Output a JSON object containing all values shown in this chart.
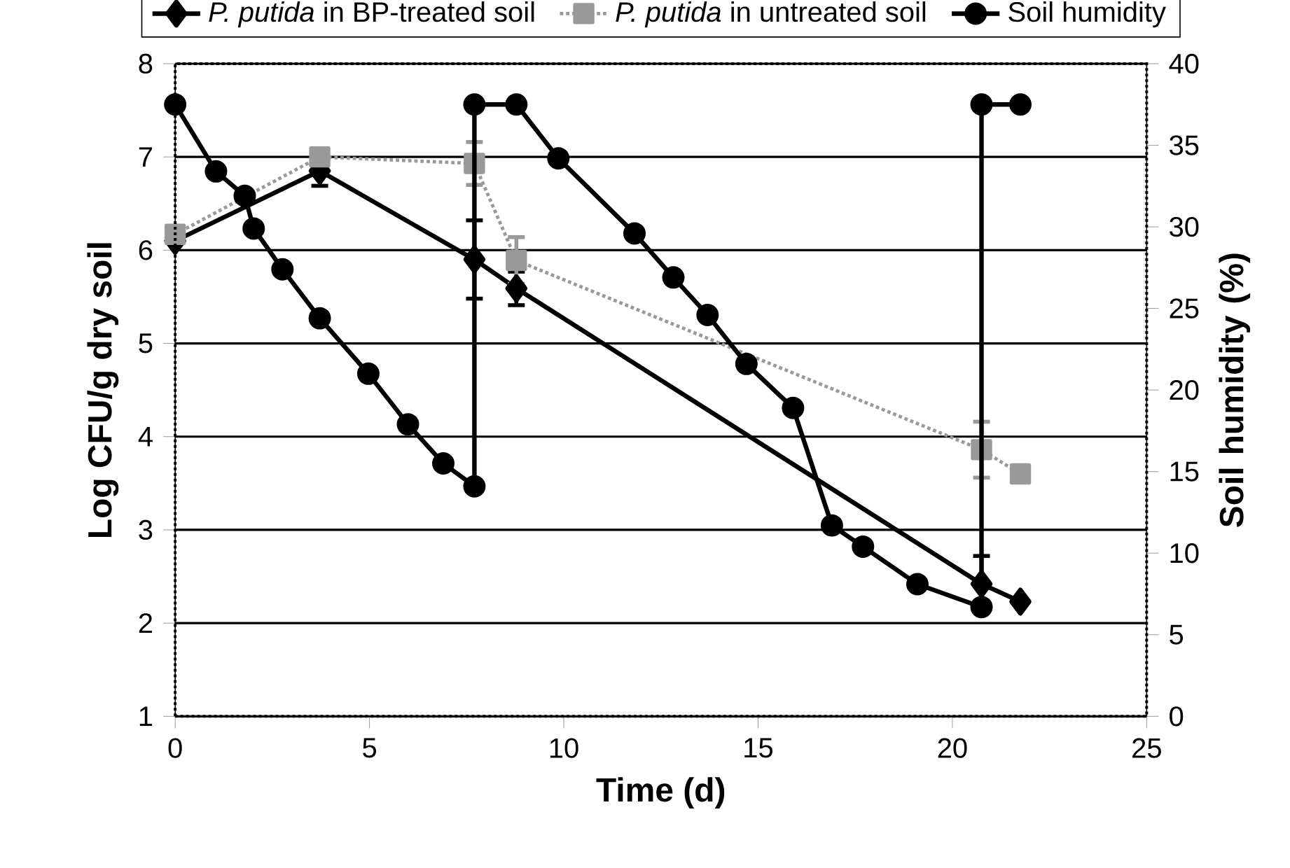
{
  "chart_data": {
    "type": "line",
    "xlabel": "Time (d)",
    "ylabel": "Log CFU/g dry soil",
    "y2label": "Soil humidity (%)",
    "xlim": [
      0,
      25
    ],
    "xticks": [
      0,
      5,
      10,
      15,
      20,
      25
    ],
    "ylim": [
      1,
      8
    ],
    "yticks": [
      1,
      2,
      3,
      4,
      5,
      6,
      7,
      8
    ],
    "y2lim": [
      0,
      40
    ],
    "y2ticks": [
      0,
      5,
      10,
      15,
      20,
      25,
      30,
      35,
      40
    ],
    "grid": "y",
    "legend": "top",
    "line_style": "solid",
    "series": [
      {
        "name": "*P. putida* in BP-treated soil",
        "color": "#000000",
        "marker": "diamond",
        "x": [
          0,
          3.72,
          7.7,
          8.78,
          20.75,
          21.75
        ],
        "values": [
          6.1,
          6.85,
          5.9,
          5.59,
          2.42,
          2.23
        ],
        "errors": [
          null,
          0.16,
          0.42,
          0.18,
          0.3,
          null
        ]
      },
      {
        "name": "*P. putida* in untreated soil",
        "color": "#999999",
        "marker": "square",
        "line_style": "dotted",
        "x": [
          0,
          3.72,
          7.7,
          8.78,
          20.75,
          21.75
        ],
        "values": [
          6.17,
          7.0,
          6.93,
          5.89,
          3.86,
          3.6
        ],
        "errors": [
          null,
          null,
          0.23,
          0.25,
          0.3,
          null
        ]
      },
      {
        "name": "Soil humidity",
        "color": "#000000",
        "marker": "circle",
        "axis": "y2",
        "x": [
          0,
          1.05,
          1.79,
          2.02,
          2.76,
          3.72,
          4.97,
          5.99,
          6.9,
          7.7,
          7.7,
          8.78,
          9.86,
          11.82,
          12.82,
          13.7,
          14.7,
          15.9,
          16.9,
          17.7,
          19.1,
          20.75,
          20.75,
          21.75
        ],
        "values": [
          37.5,
          33.4,
          31.9,
          29.9,
          27.4,
          24.4,
          21.0,
          17.9,
          15.5,
          14.1,
          37.5,
          37.5,
          34.2,
          29.6,
          26.9,
          24.6,
          21.6,
          18.9,
          11.7,
          10.4,
          8.1,
          6.7,
          37.5,
          37.5
        ]
      }
    ]
  }
}
